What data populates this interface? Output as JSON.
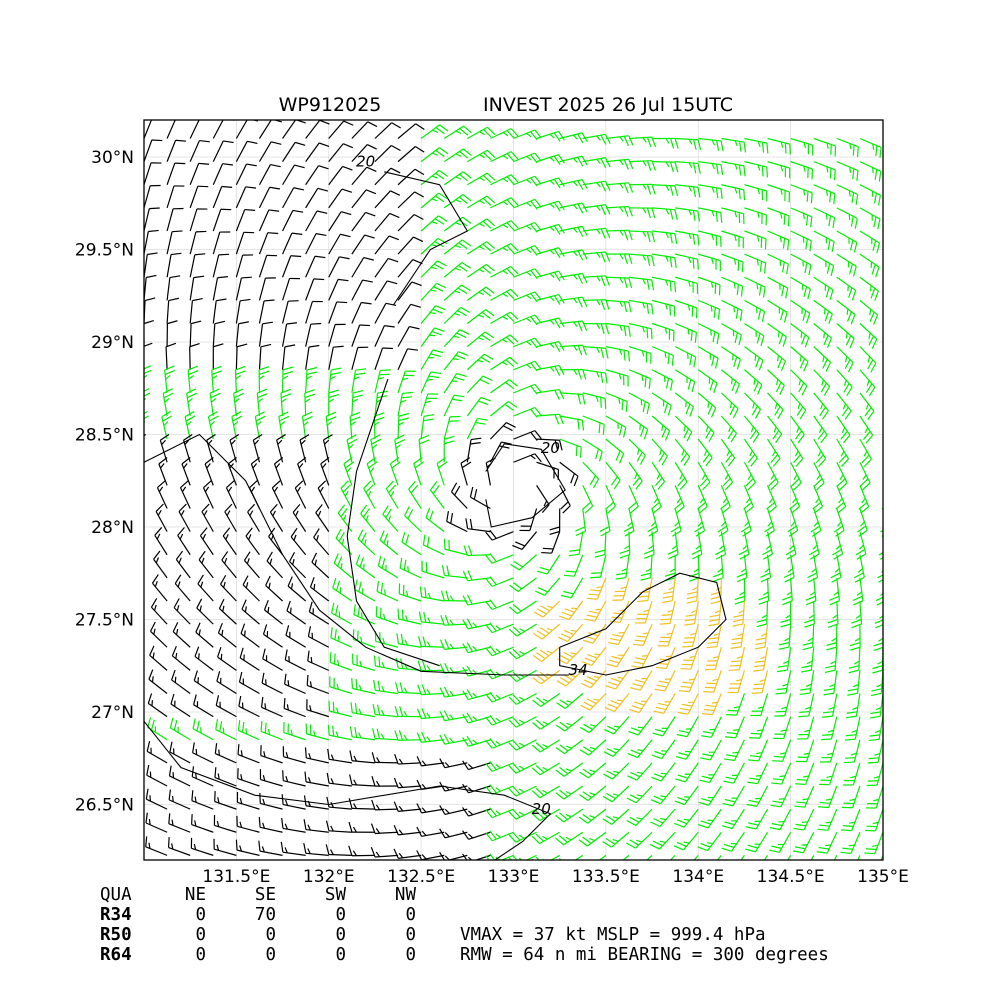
{
  "chart_data": {
    "type": "wind barb map",
    "title_left": "WP912025",
    "title_right": "INVEST 2025 26 Jul 15UTC",
    "xlim": [
      131.0,
      135.0
    ],
    "ylim": [
      26.2,
      30.2
    ],
    "x_ticks": [
      {
        "value": 131.5,
        "label": "131.5°E"
      },
      {
        "value": 132.0,
        "label": "132°E"
      },
      {
        "value": 132.5,
        "label": "132.5°E"
      },
      {
        "value": 133.0,
        "label": "133°E"
      },
      {
        "value": 133.5,
        "label": "133.5°E"
      },
      {
        "value": 134.0,
        "label": "134°E"
      },
      {
        "value": 134.5,
        "label": "134.5°E"
      },
      {
        "value": 135.0,
        "label": "135°E"
      }
    ],
    "y_ticks": [
      {
        "value": 26.5,
        "label": "26.5°N"
      },
      {
        "value": 27.0,
        "label": "27°N"
      },
      {
        "value": 27.5,
        "label": "27.5°N"
      },
      {
        "value": 28.0,
        "label": "28°N"
      },
      {
        "value": 28.5,
        "label": "28.5°N"
      },
      {
        "value": 29.0,
        "label": "29°N"
      },
      {
        "value": 29.5,
        "label": "29.5°N"
      },
      {
        "value": 30.0,
        "label": "30°N"
      }
    ],
    "grid": true,
    "center": {
      "lon": 133.0,
      "lat": 28.2
    },
    "colors": {
      "below_20kt": "#000000",
      "20_to_34kt": "#00ee00",
      "above_34kt": "#f0c020"
    },
    "contours": [
      {
        "label": "20",
        "level": 20
      },
      {
        "label": "34",
        "level": 34
      }
    ]
  },
  "wind_radii_table": {
    "header": [
      "QUA",
      "NE",
      "SE",
      "SW",
      "NW"
    ],
    "rows": [
      {
        "label": "R34",
        "values": [
          "0",
          "70",
          "0",
          "0"
        ]
      },
      {
        "label": "R50",
        "values": [
          "0",
          "0",
          "0",
          "0"
        ]
      },
      {
        "label": "R64",
        "values": [
          "0",
          "0",
          "0",
          "0"
        ]
      }
    ]
  },
  "summary": {
    "line1": "VMAX =  37 kt MSLP = 999.4 hPa",
    "line2": "RMW =  64 n mi BEARING = 300 degrees"
  }
}
